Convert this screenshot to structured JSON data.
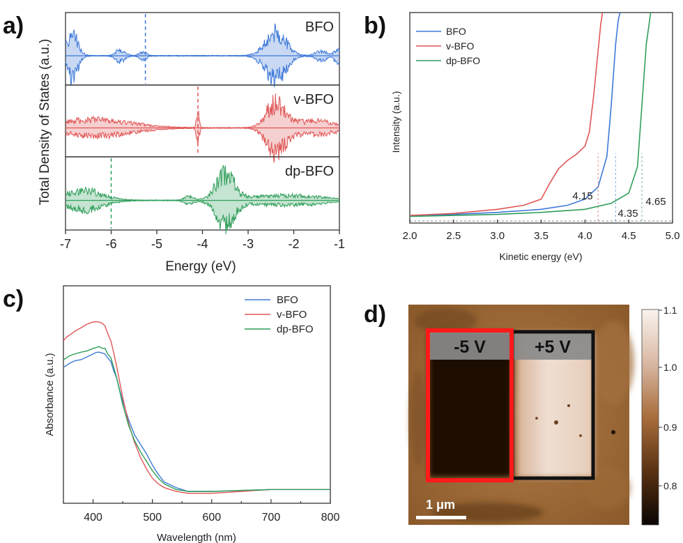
{
  "panels": {
    "a": {
      "label": "a)"
    },
    "b": {
      "label": "b)"
    },
    "c": {
      "label": "c)"
    },
    "d": {
      "label": "d)"
    }
  },
  "chart_data": [
    {
      "id": "a",
      "type": "area",
      "xlabel": "Energy (eV)",
      "ylabel": "Total Density of States (a.u.)",
      "xlim": [
        -7,
        -1
      ],
      "xticks": [
        -7,
        -6,
        -5,
        -4,
        -3,
        -2,
        -1
      ],
      "subpanels": [
        {
          "name": "BFO",
          "color": "#3c78d8",
          "fermi": -5.25,
          "bands": [
            {
              "center": -6.85,
              "width": 0.12,
              "amp": 0.9
            },
            {
              "center": -5.8,
              "width": 0.1,
              "amp": 0.25
            },
            {
              "center": -5.3,
              "width": 0.08,
              "amp": 0.15
            },
            {
              "center": -2.4,
              "width": 0.22,
              "amp": 1.0
            },
            {
              "center": -1.4,
              "width": 0.12,
              "amp": 0.2
            },
            {
              "center": -1.05,
              "width": 0.06,
              "amp": 0.3
            }
          ]
        },
        {
          "name": "v-BFO",
          "color": "#e05555",
          "fermi": -4.1,
          "bands": [
            {
              "center": -6.4,
              "width": 0.8,
              "amp": 0.35
            },
            {
              "center": -4.1,
              "width": 0.03,
              "amp": 0.6
            },
            {
              "center": -2.4,
              "width": 0.2,
              "amp": 1.0
            },
            {
              "center": -1.6,
              "width": 0.5,
              "amp": 0.3
            }
          ]
        },
        {
          "name": "dp-BFO",
          "color": "#2e9e5a",
          "fermi": -6.0,
          "bands": [
            {
              "center": -6.6,
              "width": 0.4,
              "amp": 0.4
            },
            {
              "center": -4.3,
              "width": 0.1,
              "amp": 0.15
            },
            {
              "center": -3.5,
              "width": 0.2,
              "amp": 1.0
            },
            {
              "center": -2.2,
              "width": 0.8,
              "amp": 0.2
            }
          ]
        }
      ]
    },
    {
      "id": "b",
      "type": "line",
      "xlabel": "Kinetic energy (eV)",
      "ylabel": "Intensity (a.u.)",
      "xlim": [
        2.0,
        5.0
      ],
      "xticks": [
        2.0,
        2.5,
        3.0,
        3.5,
        4.0,
        4.5,
        5.0
      ],
      "legend": "top-left",
      "series": [
        {
          "name": "BFO",
          "color": "#3c78d8",
          "cutoff": 4.35,
          "label": "4.35",
          "x": [
            2.0,
            2.5,
            3.0,
            3.5,
            3.8,
            4.0,
            4.15,
            4.25,
            4.3,
            4.35,
            4.38,
            4.4
          ],
          "y": [
            0.01,
            0.015,
            0.025,
            0.04,
            0.06,
            0.09,
            0.15,
            0.3,
            0.55,
            0.85,
            0.97,
            1.05
          ]
        },
        {
          "name": "v-BFO",
          "color": "#e05555",
          "cutoff": 4.15,
          "label": "4.15",
          "x": [
            2.0,
            2.5,
            3.0,
            3.3,
            3.5,
            3.6,
            3.7,
            3.8,
            3.9,
            4.0,
            4.05,
            4.1,
            4.15,
            4.18,
            4.2
          ],
          "y": [
            0.01,
            0.02,
            0.04,
            0.06,
            0.09,
            0.17,
            0.24,
            0.28,
            0.31,
            0.35,
            0.42,
            0.6,
            0.82,
            0.95,
            1.05
          ]
        },
        {
          "name": "dp-BFO",
          "color": "#2e9e5a",
          "cutoff": 4.65,
          "label": "4.65",
          "x": [
            2.0,
            2.5,
            3.0,
            3.5,
            4.0,
            4.3,
            4.5,
            4.6,
            4.65,
            4.7,
            4.75
          ],
          "y": [
            0.005,
            0.01,
            0.015,
            0.025,
            0.04,
            0.07,
            0.12,
            0.25,
            0.55,
            0.85,
            1.05
          ]
        }
      ]
    },
    {
      "id": "c",
      "type": "line",
      "xlabel": "Wavelength (nm)",
      "ylabel": "Absorbance (a.u.)",
      "xlim": [
        350,
        800
      ],
      "xticks": [
        400,
        500,
        600,
        700,
        800
      ],
      "legend": "top-right",
      "series": [
        {
          "name": "BFO",
          "color": "#3c78d8",
          "x": [
            350,
            360,
            380,
            400,
            410,
            420,
            430,
            440,
            450,
            460,
            470,
            480,
            490,
            500,
            510,
            520,
            540,
            560,
            600,
            650,
            700,
            750,
            800
          ],
          "y": [
            0.66,
            0.68,
            0.7,
            0.73,
            0.74,
            0.73,
            0.69,
            0.6,
            0.48,
            0.38,
            0.3,
            0.25,
            0.2,
            0.14,
            0.09,
            0.05,
            0.02,
            0.0,
            0.0,
            0.005,
            0.01,
            0.01,
            0.01
          ]
        },
        {
          "name": "v-BFO",
          "color": "#e05555",
          "x": [
            350,
            360,
            380,
            400,
            410,
            420,
            430,
            440,
            450,
            460,
            470,
            480,
            490,
            500,
            510,
            520,
            540,
            560,
            600,
            650,
            700,
            750,
            800
          ],
          "y": [
            0.8,
            0.83,
            0.87,
            0.9,
            0.9,
            0.88,
            0.8,
            0.66,
            0.5,
            0.36,
            0.26,
            0.18,
            0.12,
            0.07,
            0.04,
            0.02,
            0.0,
            -0.01,
            -0.01,
            0.0,
            0.01,
            0.01,
            0.01
          ]
        },
        {
          "name": "dp-BFO",
          "color": "#2e9e5a",
          "x": [
            350,
            360,
            380,
            400,
            410,
            420,
            430,
            440,
            450,
            460,
            470,
            480,
            490,
            500,
            510,
            520,
            540,
            560,
            600,
            650,
            700,
            750,
            800
          ],
          "y": [
            0.7,
            0.72,
            0.74,
            0.76,
            0.77,
            0.76,
            0.71,
            0.6,
            0.46,
            0.35,
            0.27,
            0.21,
            0.16,
            0.11,
            0.07,
            0.04,
            0.01,
            0.0,
            0.0,
            0.005,
            0.01,
            0.01,
            0.01
          ]
        }
      ]
    },
    {
      "id": "d",
      "type": "heatmap",
      "regions": [
        {
          "label": "-5 V",
          "frame_color": "#ff1a1a"
        },
        {
          "label": "+5 V",
          "frame_color": "#111111"
        }
      ],
      "scalebar": "1 μm",
      "colorbar": {
        "ticks": [
          "1.1",
          "1.0",
          "0.9",
          "0.8"
        ]
      }
    }
  ]
}
